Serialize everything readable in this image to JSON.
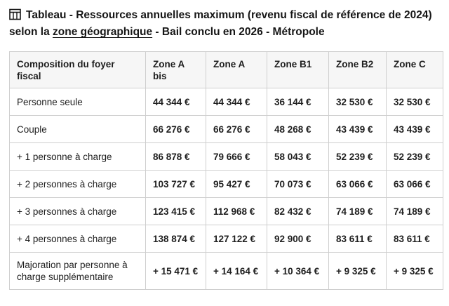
{
  "heading": {
    "prefix": "Tableau - Ressources annuelles maximum (revenu fiscal de référence de 2024) selon la ",
    "link": "zone géographique",
    "suffix": " - Bail conclu en 2026 - Métropole"
  },
  "table": {
    "columns": [
      "Composition du foyer fiscal",
      "Zone A bis",
      "Zone A",
      "Zone B1",
      "Zone B2",
      "Zone C"
    ],
    "rows": [
      {
        "label": "Personne seule",
        "values": [
          "44 344 €",
          "44 344 €",
          "36 144 €",
          "32 530 €",
          "32 530 €"
        ]
      },
      {
        "label": "Couple",
        "values": [
          "66 276 €",
          "66 276 €",
          "48 268 €",
          "43 439 €",
          "43 439 €"
        ]
      },
      {
        "label": "+ 1 personne à charge",
        "values": [
          "86 878 €",
          "79 666 €",
          "58 043 €",
          "52 239 €",
          "52 239 €"
        ]
      },
      {
        "label": "+ 2 personnes à charge",
        "values": [
          "103 727 €",
          "95 427 €",
          "70 073 €",
          "63 066 €",
          "63 066 €"
        ]
      },
      {
        "label": "+ 3 personnes à charge",
        "values": [
          "123 415 €",
          "112 968 €",
          "82 432 €",
          "74 189 €",
          "74 189 €"
        ]
      },
      {
        "label": "+ 4 personnes à charge",
        "values": [
          "138 874 €",
          "127 122 €",
          "92 900 €",
          "83 611 €",
          "83 611 €"
        ]
      },
      {
        "label": "Majoration par personne à charge supplémentaire",
        "values": [
          "+ 15 471 €",
          "+ 14 164 €",
          "+ 10 364 €",
          "+ 9 325 €",
          "+ 9 325 €"
        ]
      }
    ]
  },
  "icons": {
    "heading_icon": "table-icon"
  }
}
